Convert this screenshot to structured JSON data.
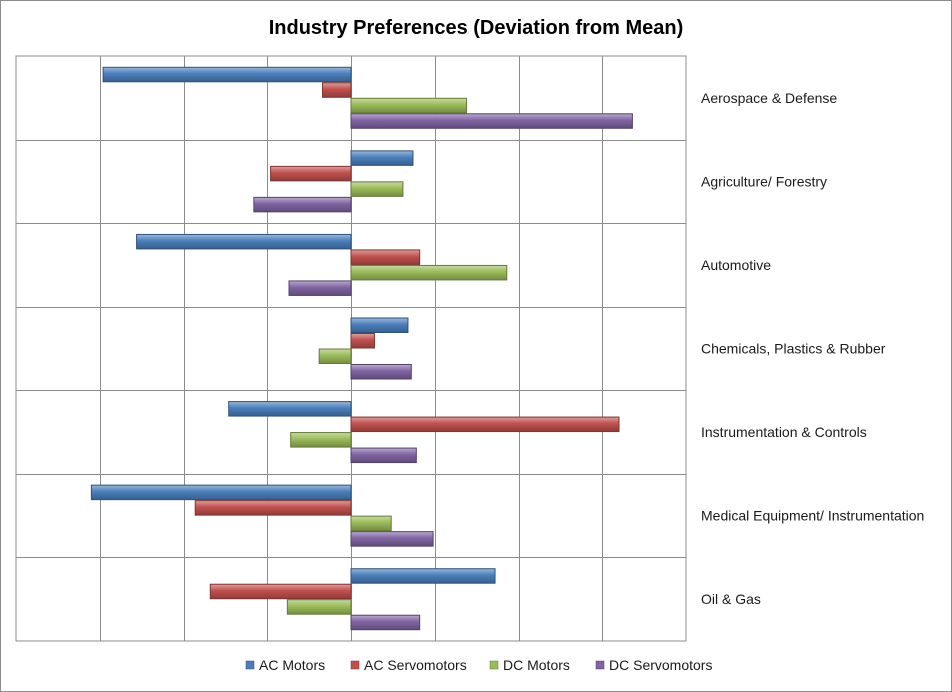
{
  "chart_data": {
    "type": "bar",
    "orientation": "horizontal",
    "title": "Industry Preferences (Deviation from Mean)",
    "xlabel": "",
    "ylabel": "",
    "xlim": [
      -20,
      20
    ],
    "x_tick_step": 5,
    "x_tick_labels_shown": false,
    "grid": true,
    "legend_position": "bottom",
    "category_label_position": "right",
    "categories": [
      "Aerospace & Defense",
      "Agriculture/ Forestry",
      "Automotive",
      "Chemicals, Plastics & Rubber",
      "Instrumentation & Controls",
      "Medical Equipment/ Instrumentation",
      "Oil & Gas"
    ],
    "series": [
      {
        "name": "AC Motors",
        "color": "#4a7ebb",
        "values": [
          -14.8,
          3.7,
          -12.8,
          3.4,
          -7.3,
          -15.5,
          8.6
        ]
      },
      {
        "name": "AC Servomotors",
        "color": "#c0504d",
        "values": [
          -1.7,
          -4.8,
          4.1,
          1.4,
          16.0,
          -9.3,
          -8.4
        ]
      },
      {
        "name": "DC Motors",
        "color": "#9bbb59",
        "values": [
          6.9,
          3.1,
          9.3,
          -1.9,
          -3.6,
          2.4,
          -3.8
        ]
      },
      {
        "name": "DC Servomotors",
        "color": "#8064a2",
        "values": [
          16.8,
          -5.8,
          -3.7,
          3.6,
          3.9,
          4.9,
          4.1
        ]
      }
    ]
  }
}
